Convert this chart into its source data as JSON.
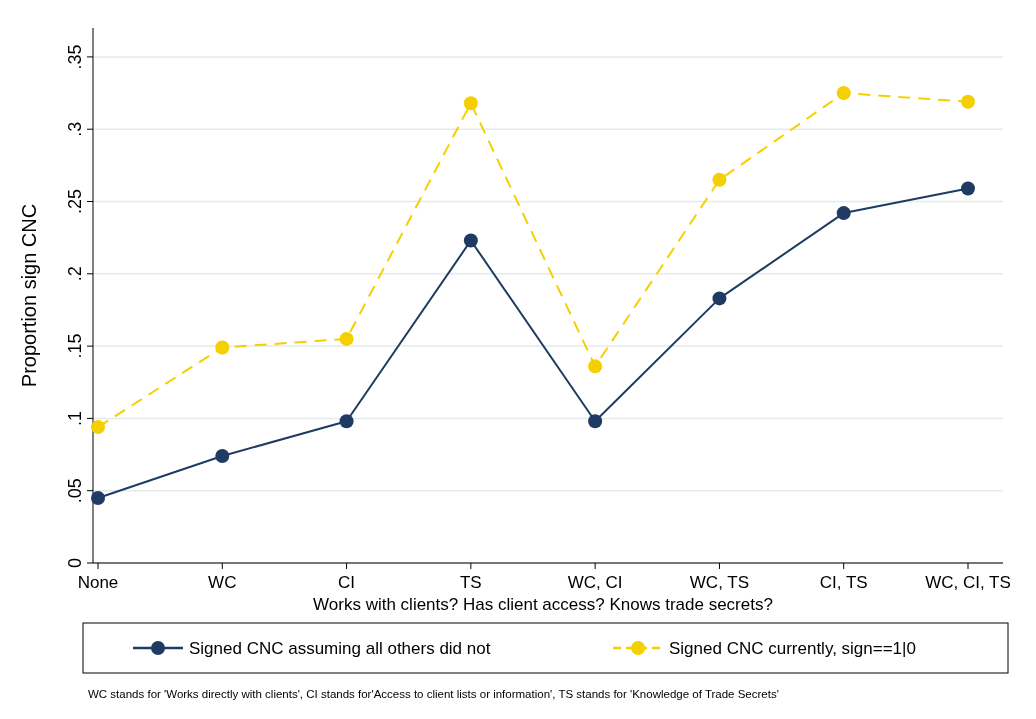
{
  "chart_data": {
    "type": "line",
    "xlabel": "Works with clients? Has client access? Knows trade secrets?",
    "ylabel": "Proportion sign CNC",
    "categories": [
      "None",
      "WC",
      "CI",
      "TS",
      "WC, CI",
      "WC, TS",
      "CI, TS",
      "WC, CI, TS"
    ],
    "series": [
      {
        "name": "Signed CNC assuming all others did not",
        "color": "#1f3b63",
        "line_style": "solid",
        "values": [
          0.045,
          0.074,
          0.098,
          0.223,
          0.098,
          0.183,
          0.242,
          0.259
        ]
      },
      {
        "name": "Signed CNC currently, sign==1|0",
        "color": "#f5d000",
        "line_style": "dashed",
        "values": [
          0.094,
          0.149,
          0.155,
          0.318,
          0.136,
          0.265,
          0.325,
          0.319
        ]
      }
    ],
    "ylim": [
      0,
      0.37
    ],
    "yticks": [
      0,
      {
        "value": 0.05,
        "label": ".05"
      },
      {
        "value": 0.1,
        "label": ".1"
      },
      {
        "value": 0.15,
        "label": ".15"
      },
      {
        "value": 0.2,
        "label": ".2"
      },
      {
        "value": 0.25,
        "label": ".25"
      },
      {
        "value": 0.3,
        "label": ".3"
      },
      {
        "value": 0.35,
        "label": ".35"
      }
    ],
    "grid": "y",
    "legend": "bottom",
    "marker": "circle",
    "annotations": [
      "WC stands for 'Works directly with clients', CI stands for'Access to client lists or information', TS stands for 'Knowledge of Trade Secrets'"
    ]
  }
}
